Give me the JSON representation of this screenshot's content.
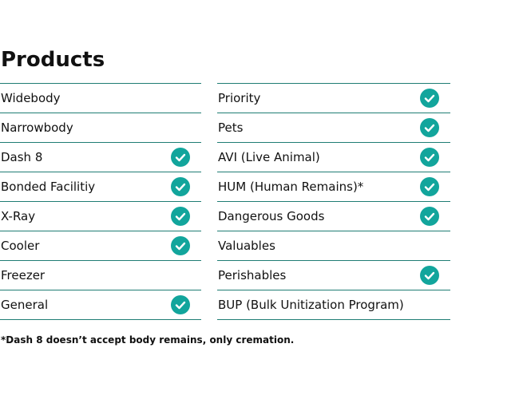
{
  "header": {
    "title": "Products"
  },
  "columns": [
    {
      "rows": [
        {
          "label": "Widebody",
          "checked": false
        },
        {
          "label": "Narrowbody",
          "checked": false
        },
        {
          "label": "Dash 8",
          "checked": true
        },
        {
          "label": "Bonded Facilitiy",
          "checked": true
        },
        {
          "label": "X-Ray",
          "checked": true
        },
        {
          "label": "Cooler",
          "checked": true
        },
        {
          "label": "Freezer",
          "checked": false
        },
        {
          "label": "General",
          "checked": true
        }
      ]
    },
    {
      "rows": [
        {
          "label": "Priority",
          "checked": true
        },
        {
          "label": "Pets",
          "checked": true
        },
        {
          "label": "AVI (Live Animal)",
          "checked": true
        },
        {
          "label": "HUM (Human Remains)*",
          "checked": true
        },
        {
          "label": "Dangerous Goods",
          "checked": true
        },
        {
          "label": "Valuables",
          "checked": false
        },
        {
          "label": "Perishables",
          "checked": true
        },
        {
          "label": "BUP (Bulk Unitization Program)",
          "checked": false
        }
      ]
    }
  ],
  "footnote": "*Dash 8 doesn’t accept body remains, only cremation."
}
